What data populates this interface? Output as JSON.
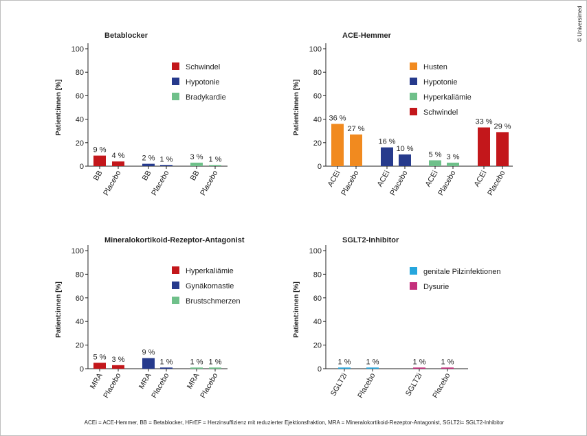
{
  "footnote": "ACEi = ACE-Hemmer, BB = Betablocker, HFrEF = Herzinsuffizienz mit reduzierter Ejektionsfraktion, MRA = Mineralokortikoid-Rezeptor-Antagonist, SGLT2i= SGLT2-Inhibitor",
  "copyright": "© Universimed",
  "chart_data": [
    {
      "type": "bar",
      "title": "Betablocker",
      "ylabel": "Patient:innen [%]",
      "ylim": [
        0,
        100
      ],
      "yticks": [
        0,
        20,
        40,
        60,
        80,
        100
      ],
      "grid": false,
      "legend_position": "upper-right",
      "categories": [
        "BB",
        "Placebo",
        "BB",
        "Placebo",
        "BB",
        "Placebo"
      ],
      "series": [
        {
          "name": "Schwindel",
          "color": "#c3171b",
          "values": [
            9,
            4,
            null,
            null,
            null,
            null
          ]
        },
        {
          "name": "Hypotonie",
          "color": "#263a8c",
          "values": [
            null,
            null,
            2,
            1,
            null,
            null
          ]
        },
        {
          "name": "Bradykardie",
          "color": "#6fc08a",
          "values": [
            null,
            null,
            null,
            null,
            3,
            1
          ]
        }
      ],
      "data_labels": [
        "9 %",
        "4 %",
        "2 %",
        "1 %",
        "3 %",
        "1 %"
      ]
    },
    {
      "type": "bar",
      "title": "ACE-Hemmer",
      "ylabel": "Patient:innen [%]",
      "ylim": [
        0,
        100
      ],
      "yticks": [
        0,
        20,
        40,
        60,
        80,
        100
      ],
      "grid": false,
      "legend_position": "upper-right",
      "categories": [
        "ACEi",
        "Placebo",
        "ACEi",
        "Placebo",
        "ACEi",
        "Placebo",
        "ACEi",
        "Placebo"
      ],
      "series": [
        {
          "name": "Husten",
          "color": "#f18a1f",
          "values": [
            36,
            27,
            null,
            null,
            null,
            null,
            null,
            null
          ]
        },
        {
          "name": "Hypotonie",
          "color": "#263a8c",
          "values": [
            null,
            null,
            16,
            10,
            null,
            null,
            null,
            null
          ]
        },
        {
          "name": "Hyperkaliämie",
          "color": "#6fc08a",
          "values": [
            null,
            null,
            null,
            null,
            5,
            3,
            null,
            null
          ]
        },
        {
          "name": "Schwindel",
          "color": "#c3171b",
          "values": [
            null,
            null,
            null,
            null,
            null,
            null,
            33,
            29
          ]
        }
      ],
      "data_labels": [
        "36 %",
        "27 %",
        "16 %",
        "10 %",
        "5 %",
        "3 %",
        "33 %",
        "29 %"
      ]
    },
    {
      "type": "bar",
      "title": "Mineralokortikoid-Rezeptor-Antagonist",
      "ylabel": "Patient:innen [%]",
      "ylim": [
        0,
        100
      ],
      "yticks": [
        0,
        20,
        40,
        60,
        80,
        100
      ],
      "grid": false,
      "legend_position": "upper-right",
      "categories": [
        "MRA",
        "Placebo",
        "MRA",
        "Placebo",
        "MRA",
        "Placebo"
      ],
      "series": [
        {
          "name": "Hyperkaliämie",
          "color": "#c3171b",
          "values": [
            5,
            3,
            null,
            null,
            null,
            null
          ]
        },
        {
          "name": "Gynäkomastie",
          "color": "#263a8c",
          "values": [
            null,
            null,
            9,
            1,
            null,
            null
          ]
        },
        {
          "name": "Brustschmerzen",
          "color": "#6fc08a",
          "values": [
            null,
            null,
            null,
            null,
            1,
            1
          ]
        }
      ],
      "data_labels": [
        "5 %",
        "3 %",
        "9 %",
        "1 %",
        "1 %",
        "1 %"
      ]
    },
    {
      "type": "bar",
      "title": "SGLT2-Inhibitor",
      "ylabel": "Patient:innen [%]",
      "ylim": [
        0,
        100
      ],
      "yticks": [
        0,
        20,
        40,
        60,
        80,
        100
      ],
      "grid": false,
      "legend_position": "upper-right",
      "categories": [
        "SGLT2i",
        "Placebo",
        "SGLT2i",
        "Placebo"
      ],
      "series": [
        {
          "name": "genitale Pilzinfektionen",
          "color": "#26a6dd",
          "values": [
            1,
            1,
            null,
            null
          ]
        },
        {
          "name": "Dysurie",
          "color": "#c4307c",
          "values": [
            null,
            null,
            1,
            1
          ]
        }
      ],
      "data_labels": [
        "1 %",
        "1 %",
        "1 %",
        "1 %"
      ]
    }
  ]
}
